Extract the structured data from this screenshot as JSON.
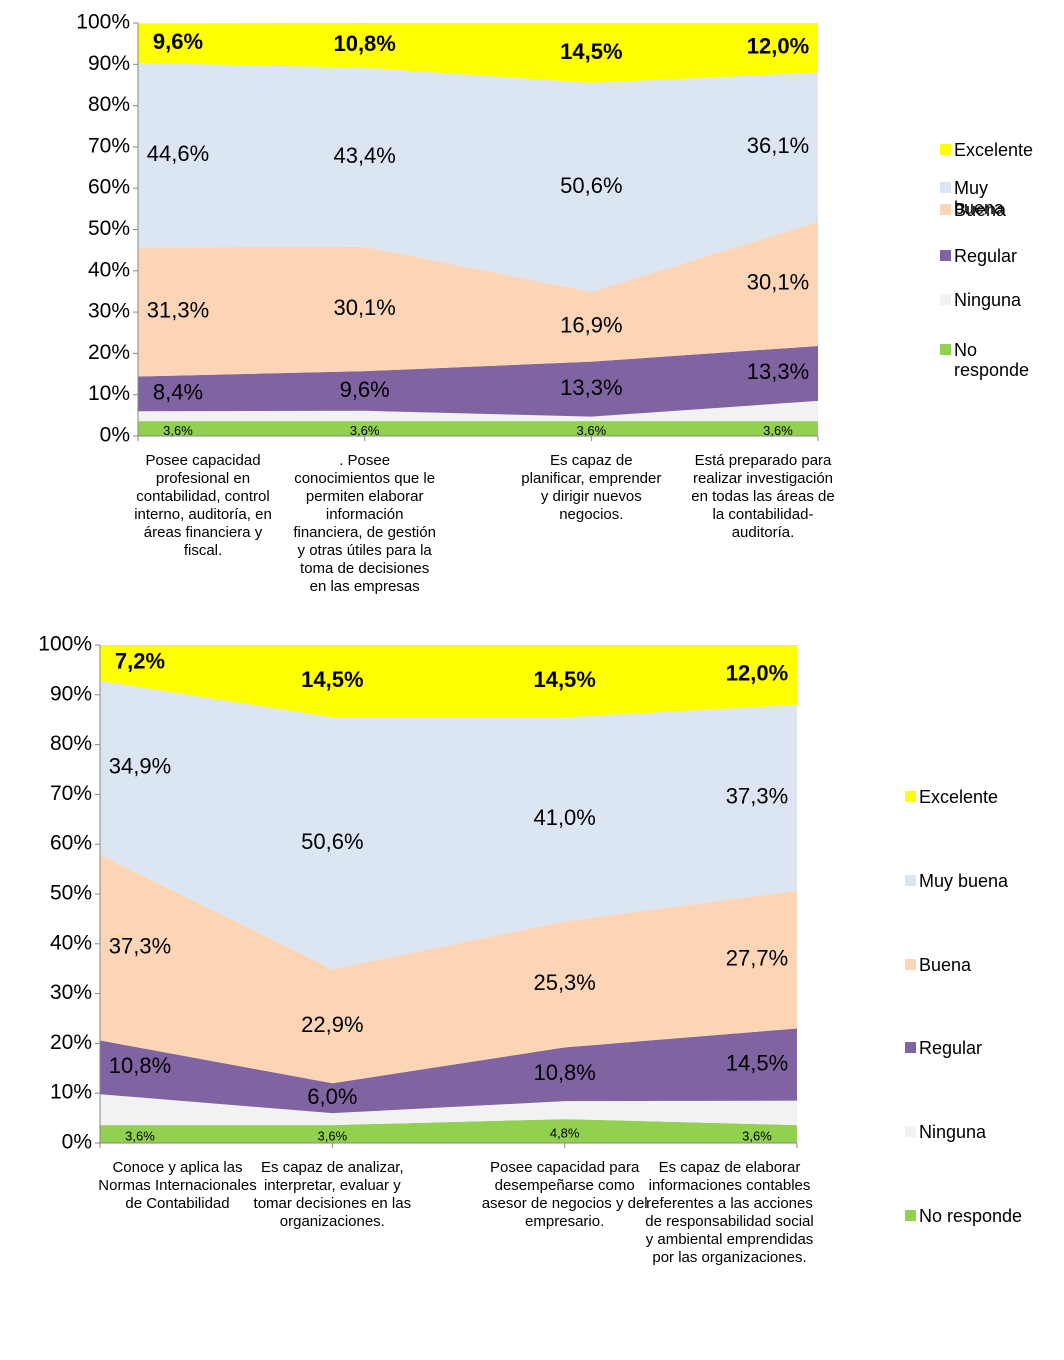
{
  "chart_data": [
    {
      "type": "area",
      "stacked": true,
      "categories": [
        "Posee capacidad profesional en contabilidad, control interno, auditoría, en áreas financiera y fiscal.",
        ". Posee conocimientos que le permiten elaborar información financiera, de gestión y otras útiles para la toma de decisiones en las empresas",
        "Es capaz de planificar, emprender y dirigir nuevos negocios.",
        "Está preparado para realizar investigación en todas las áreas de la contabilidad-auditoría."
      ],
      "ylim": [
        0,
        100
      ],
      "yticks": [
        {
          "value": 0,
          "label": "0%"
        },
        {
          "value": 10,
          "label": "10%"
        },
        {
          "value": 20,
          "label": "20%"
        },
        {
          "value": 30,
          "label": "30%"
        },
        {
          "value": 40,
          "label": "40%"
        },
        {
          "value": 50,
          "label": "50%"
        },
        {
          "value": 60,
          "label": "60%"
        },
        {
          "value": 70,
          "label": "70%"
        },
        {
          "value": 80,
          "label": "80%"
        },
        {
          "value": 90,
          "label": "90%"
        },
        {
          "value": 100,
          "label": "100%"
        }
      ],
      "legend": "right",
      "series": [
        {
          "name": "No responde",
          "color": "#92d050",
          "values": [
            3.6,
            3.6,
            3.6,
            3.6
          ],
          "value_labels": [
            "3,6%",
            "3,6%",
            "3,6%",
            "3,6%"
          ]
        },
        {
          "name": "Ninguna",
          "color": "#f2f2f2",
          "values": [
            2.4,
            2.5,
            1.1,
            4.9
          ]
        },
        {
          "name": "Regular",
          "color": "#8064a2",
          "values": [
            8.4,
            9.6,
            13.3,
            13.3
          ],
          "value_labels": [
            "8,4%",
            "9,6%",
            "13,3%",
            "13,3%"
          ]
        },
        {
          "name": "Buena",
          "color": "#fbd5b5",
          "values": [
            31.3,
            30.1,
            16.9,
            30.1
          ],
          "value_labels": [
            "31,3%",
            "30,1%",
            "16,9%",
            "30,1%"
          ]
        },
        {
          "name": "Muy buena",
          "color": "#dce6f2",
          "values": [
            44.6,
            43.4,
            50.6,
            36.1
          ],
          "value_labels": [
            "44,6%",
            "43,4%",
            "50,6%",
            "36,1%"
          ]
        },
        {
          "name": "Excelente",
          "color": "#ffff00",
          "values": [
            9.6,
            10.8,
            14.5,
            12.0
          ],
          "value_labels": [
            "9,6%",
            "10,8%",
            "14,5%",
            "12,0%"
          ]
        }
      ]
    },
    {
      "type": "area",
      "stacked": true,
      "categories": [
        "Conoce y aplica las Normas Internacionales de Contabilidad",
        "Es capaz de analizar, interpretar, evaluar y tomar decisiones en las organizaciones.",
        "Posee capacidad para desempeñarse como asesor de negocios y del empresario.",
        "Es capaz de elaborar informaciones contables referentes a las acciones de responsabilidad social y ambiental emprendidas por las organizaciones."
      ],
      "ylim": [
        0,
        100
      ],
      "yticks": [
        {
          "value": 0,
          "label": "0%"
        },
        {
          "value": 10,
          "label": "10%"
        },
        {
          "value": 20,
          "label": "20%"
        },
        {
          "value": 30,
          "label": "30%"
        },
        {
          "value": 40,
          "label": "40%"
        },
        {
          "value": 50,
          "label": "50%"
        },
        {
          "value": 60,
          "label": "60%"
        },
        {
          "value": 70,
          "label": "70%"
        },
        {
          "value": 80,
          "label": "80%"
        },
        {
          "value": 90,
          "label": "90%"
        },
        {
          "value": 100,
          "label": "100%"
        }
      ],
      "legend": "right",
      "series": [
        {
          "name": "No responde",
          "color": "#92d050",
          "values": [
            3.6,
            3.6,
            4.8,
            3.6
          ],
          "value_labels": [
            "3,6%",
            "3,6%",
            "4,8%",
            "3,6%"
          ]
        },
        {
          "name": "Ninguna",
          "color": "#f2f2f2",
          "values": [
            6.2,
            2.4,
            3.6,
            4.9
          ]
        },
        {
          "name": "Regular",
          "color": "#8064a2",
          "values": [
            10.8,
            6.0,
            10.8,
            14.5
          ],
          "value_labels": [
            "10,8%",
            "6,0%",
            "10,8%",
            "14,5%"
          ]
        },
        {
          "name": "Buena",
          "color": "#fbd5b5",
          "values": [
            37.3,
            22.9,
            25.3,
            27.7
          ],
          "value_labels": [
            "37,3%",
            "22,9%",
            "25,3%",
            "27,7%"
          ]
        },
        {
          "name": "Muy buena",
          "color": "#dce6f2",
          "values": [
            34.9,
            50.6,
            41.0,
            37.3
          ],
          "value_labels": [
            "34,9%",
            "50,6%",
            "41,0%",
            "37,3%"
          ]
        },
        {
          "name": "Excelente",
          "color": "#ffff00",
          "values": [
            7.2,
            14.5,
            14.5,
            12.0
          ],
          "value_labels": [
            "7,2%",
            "14,5%",
            "14,5%",
            "12,0%"
          ]
        }
      ]
    }
  ]
}
